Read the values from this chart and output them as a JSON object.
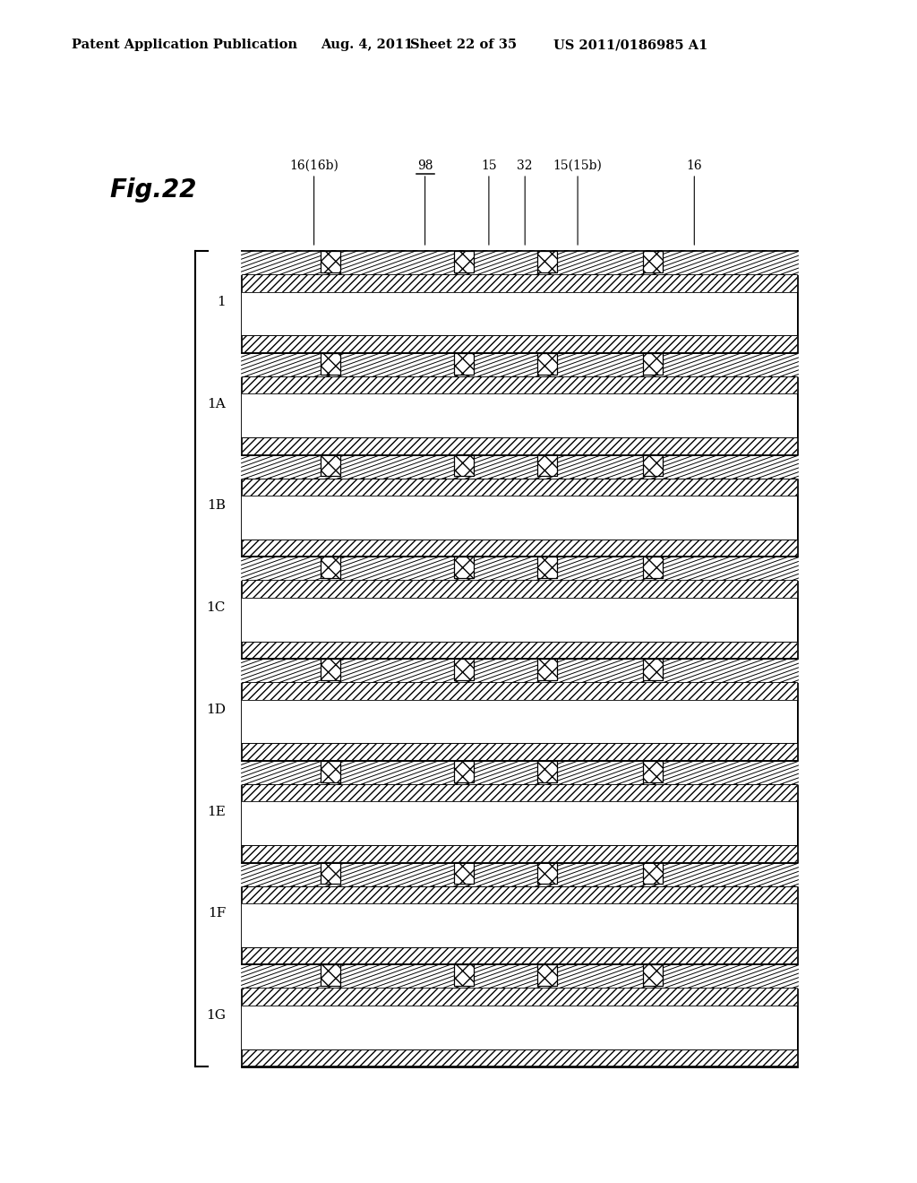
{
  "title_text": "Patent Application Publication",
  "date_text": "Aug. 4, 2011",
  "sheet_text": "Sheet 22 of 35",
  "patent_text": "US 2011/0186985 A1",
  "fig_label": "Fig.22",
  "layer_labels": [
    "1",
    "1A",
    "1B",
    "1C",
    "1D",
    "1E",
    "1F",
    "1G"
  ],
  "top_labels": [
    "16(16b)",
    "98",
    "15",
    "32",
    "15(15b)",
    "16"
  ],
  "bg_color": "#ffffff",
  "DL": 270,
  "DR": 890,
  "DT": 1040,
  "DB": 130,
  "N_LAYERS": 8
}
